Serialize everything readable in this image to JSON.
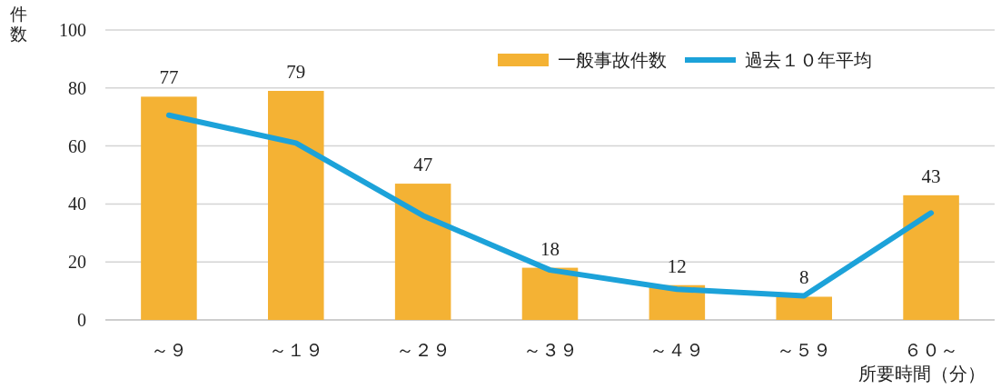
{
  "chart_data": {
    "type": "bar",
    "ylabel": "件数",
    "xlabel": "所要時間（分）",
    "categories": [
      "～９",
      "～１９",
      "～２９",
      "～３９",
      "～４９",
      "～５９",
      "６０～"
    ],
    "series": [
      {
        "name": "一般事故件数",
        "color": "#f4b234",
        "values": [
          77,
          79,
          47,
          18,
          12,
          8,
          43
        ],
        "value_labels": [
          "77",
          "79",
          "47",
          "18",
          "12",
          "8",
          "43"
        ]
      },
      {
        "name": "過去１０年平均",
        "type": "line",
        "color": "#1ca2d9",
        "values": [
          70.6,
          61,
          36,
          17.2,
          10.6,
          8.3,
          36.9
        ]
      }
    ],
    "ylim": [
      0,
      100
    ],
    "yticks": [
      0,
      20,
      40,
      60,
      80,
      100
    ],
    "grid": "y",
    "legend": "top right"
  }
}
